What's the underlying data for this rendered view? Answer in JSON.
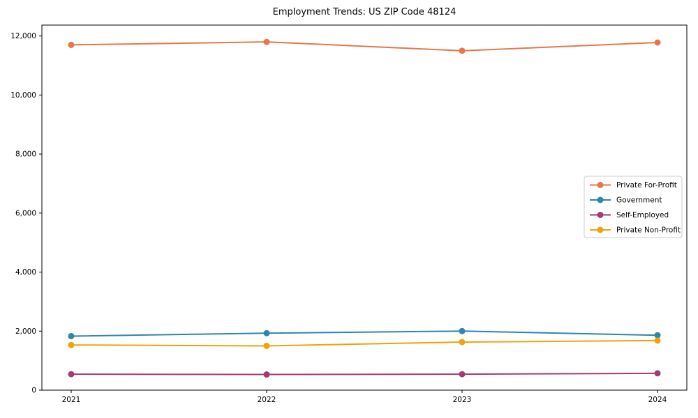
{
  "chart_data": {
    "type": "line",
    "title": "Employment Trends: US ZIP Code 48124",
    "xlabel": "",
    "ylabel": "",
    "x": [
      2021,
      2022,
      2023,
      2024
    ],
    "x_tick_labels": [
      "2021",
      "2022",
      "2023",
      "2024"
    ],
    "y_ticks": [
      0,
      2000,
      4000,
      6000,
      8000,
      10000,
      12000
    ],
    "y_tick_labels": [
      "0",
      "2,000",
      "4,000",
      "6,000",
      "8,000",
      "10,000",
      "12,000"
    ],
    "xlim": [
      2020.85,
      2024.15
    ],
    "ylim": [
      0,
      12370
    ],
    "grid": false,
    "legend_position": "center-right",
    "legend_border_color": "#cccccc",
    "axis_color": "#000000",
    "series": [
      {
        "name": "Private For-Profit",
        "color": "#E8764B",
        "values": [
          11700,
          11800,
          11500,
          11780
        ]
      },
      {
        "name": "Government",
        "color": "#2E86AB",
        "values": [
          1830,
          1930,
          2000,
          1860
        ]
      },
      {
        "name": "Self-Employed",
        "color": "#A23B72",
        "values": [
          540,
          530,
          540,
          570
        ]
      },
      {
        "name": "Private Non-Profit",
        "color": "#F1A208",
        "values": [
          1530,
          1500,
          1630,
          1680
        ]
      }
    ]
  }
}
